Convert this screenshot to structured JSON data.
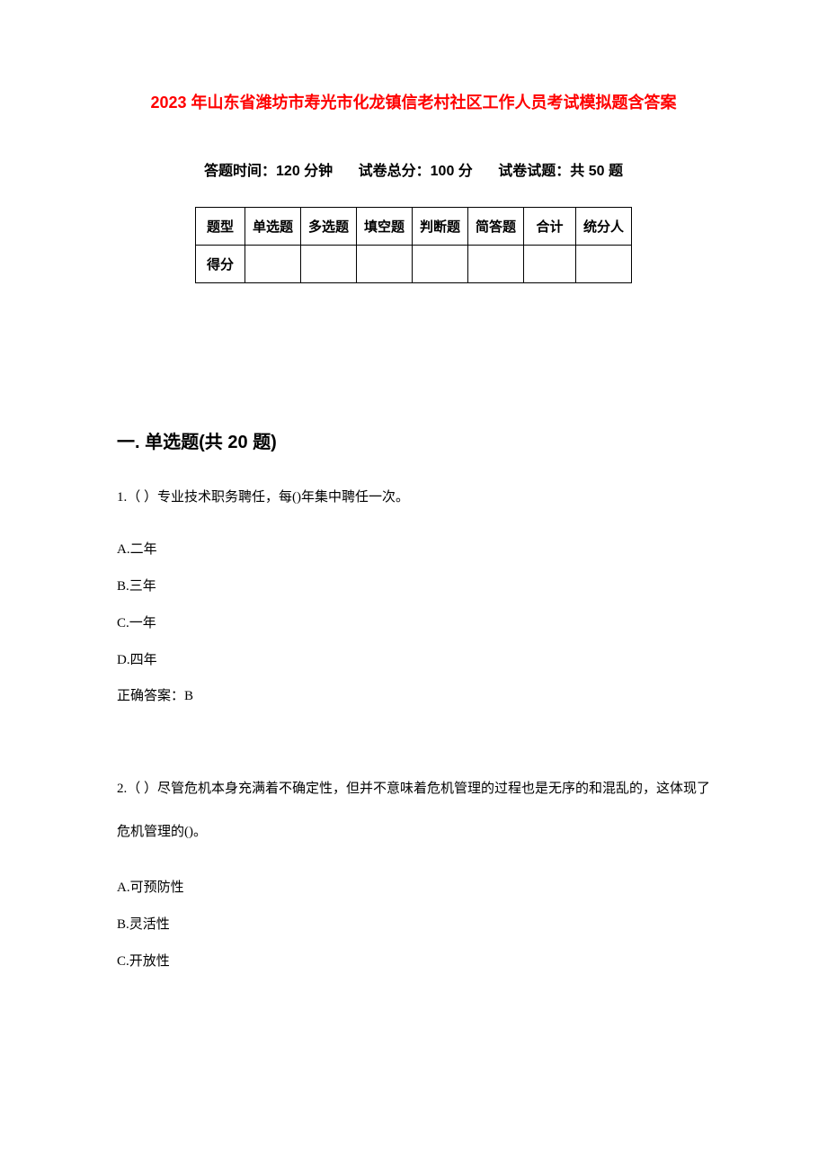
{
  "title": "2023 年山东省潍坊市寿光市化龙镇信老村社区工作人员考试模拟题含答案",
  "exam_info": {
    "time_label": "答题时间：120 分钟",
    "total_score_label": "试卷总分：100 分",
    "total_questions_label": "试卷试题：共 50 题"
  },
  "score_table": {
    "headers": [
      "题型",
      "单选题",
      "多选题",
      "填空题",
      "判断题",
      "简答题",
      "合计",
      "统分人"
    ],
    "row_label": "得分"
  },
  "section1": {
    "heading": "一. 单选题(共 20 题)",
    "q1": {
      "stem": "1.（ ）专业技术职务聘任，每()年集中聘任一次。",
      "optA": "A.二年",
      "optB": "B.三年",
      "optC": "C.一年",
      "optD": "D.四年",
      "answer": "正确答案：B"
    },
    "q2": {
      "stem": "2.（ ）尽管危机本身充满着不确定性，但并不意味着危机管理的过程也是无序的和混乱的，这体现了危机管理的()。",
      "optA": "A.可预防性",
      "optB": "B.灵活性",
      "optC": "C.开放性"
    }
  },
  "colors": {
    "title_color": "#ff0000",
    "text_color": "#000000",
    "background": "#ffffff",
    "border_color": "#000000"
  },
  "typography": {
    "title_fontsize": 18,
    "info_fontsize": 16,
    "heading_fontsize": 20,
    "body_fontsize": 15
  }
}
